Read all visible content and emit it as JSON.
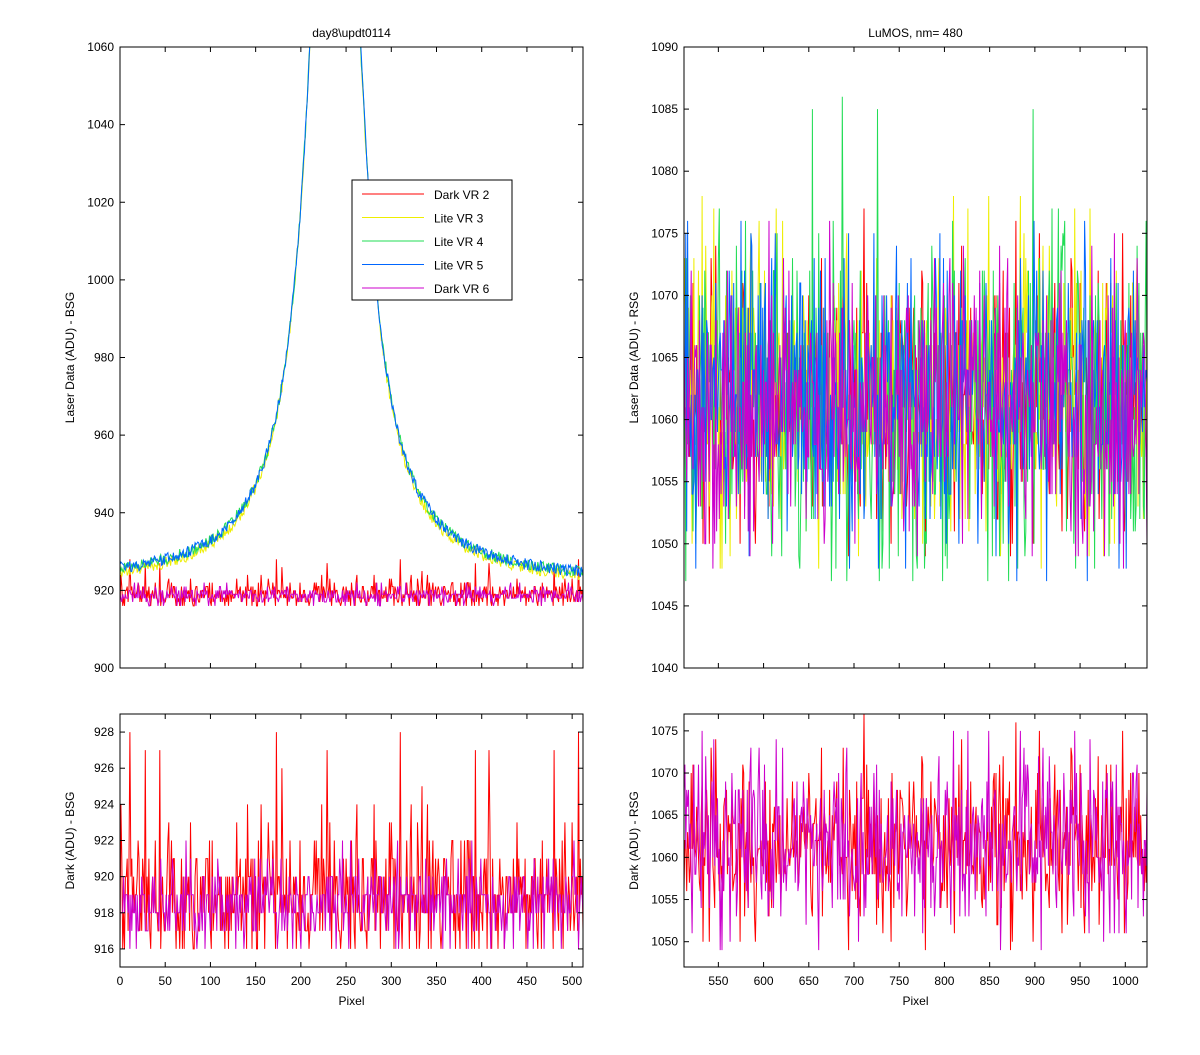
{
  "chart_data": [
    {
      "id": "top-left",
      "type": "line",
      "title": "day8\\updt0114",
      "xlabel": "",
      "ylabel": "Laser Data (ADU) - BSG",
      "xlim": [
        0,
        512
      ],
      "ylim": [
        900,
        1060
      ],
      "xticks": [
        0,
        50,
        100,
        150,
        200,
        250,
        300,
        350,
        400,
        450,
        500
      ],
      "xtick_labels_shown": false,
      "yticks": [
        900,
        920,
        940,
        960,
        980,
        1000,
        1020,
        1040,
        1060
      ],
      "legend": {
        "position": "upper-right-inside",
        "entries": [
          {
            "label": "Dark VR 2",
            "color": "#ff0000"
          },
          {
            "label": "Lite VR 3",
            "color": "#eeee00"
          },
          {
            "label": "Lite VR 4",
            "color": "#22dd55"
          },
          {
            "label": "Lite VR 5",
            "color": "#0066ff"
          },
          {
            "label": "Dark VR 6",
            "color": "#cc00cc"
          }
        ]
      },
      "series": [
        {
          "name": "Dark VR 2",
          "color": "#ff0000",
          "shape": "noise",
          "x_range": [
            0,
            512
          ],
          "mean": 919,
          "min": 916,
          "max": 928,
          "spike": {
            "x": 310,
            "y": 928
          }
        },
        {
          "name": "Lite VR 3",
          "color": "#eeee00",
          "shape": "peak",
          "x_range": [
            0,
            512
          ],
          "baseline": 921,
          "peak_x": 238,
          "peak_y": 1060,
          "clipped_above": 1060
        },
        {
          "name": "Lite VR 4",
          "color": "#22dd55",
          "shape": "peak",
          "x_range": [
            0,
            512
          ],
          "baseline": 922,
          "peak_x": 238,
          "peak_y": 1060,
          "clipped_above": 1060
        },
        {
          "name": "Lite VR 5",
          "color": "#0066ff",
          "shape": "peak",
          "x_range": [
            0,
            512
          ],
          "baseline": 922,
          "peak_x": 238,
          "peak_y": 1060,
          "clipped_above": 1060
        },
        {
          "name": "Dark VR 6",
          "color": "#cc00cc",
          "shape": "noise",
          "x_range": [
            0,
            512
          ],
          "mean": 918.6,
          "min": 916,
          "max": 922
        }
      ]
    },
    {
      "id": "top-right",
      "type": "line",
      "title": "LuMOS, nm= 480",
      "xlabel": "",
      "ylabel": "Laser Data (ADU) - RSG",
      "xlim": [
        512,
        1024
      ],
      "ylim": [
        1040,
        1090
      ],
      "xticks": [
        550,
        600,
        650,
        700,
        750,
        800,
        850,
        900,
        950,
        1000
      ],
      "xtick_labels_shown": false,
      "yticks": [
        1040,
        1045,
        1050,
        1055,
        1060,
        1065,
        1070,
        1075,
        1080,
        1085,
        1090
      ],
      "series": [
        {
          "name": "Dark VR 2",
          "color": "#ff0000",
          "shape": "noise",
          "x_range": [
            512,
            1024
          ],
          "mean": 1061.5,
          "min": 1049,
          "max": 1077
        },
        {
          "name": "Lite VR 3",
          "color": "#eeee00",
          "shape": "noise",
          "x_range": [
            512,
            1024
          ],
          "mean": 1061.5,
          "min": 1047,
          "max": 1079
        },
        {
          "name": "Lite VR 4",
          "color": "#22dd55",
          "shape": "noise",
          "x_range": [
            512,
            1024
          ],
          "mean": 1061.5,
          "min": 1047,
          "max": 1086
        },
        {
          "name": "Lite VR 5",
          "color": "#0066ff",
          "shape": "noise",
          "x_range": [
            512,
            1024
          ],
          "mean": 1061.5,
          "min": 1046,
          "max": 1076
        },
        {
          "name": "Dark VR 6",
          "color": "#cc00cc",
          "shape": "noise",
          "x_range": [
            512,
            1024
          ],
          "mean": 1061.5,
          "min": 1048,
          "max": 1076
        }
      ]
    },
    {
      "id": "bottom-left",
      "type": "line",
      "title": "",
      "xlabel": "Pixel",
      "ylabel": "Dark (ADU) - BSG",
      "xlim": [
        0,
        512
      ],
      "ylim": [
        915,
        929
      ],
      "xticks": [
        0,
        50,
        100,
        150,
        200,
        250,
        300,
        350,
        400,
        450,
        500
      ],
      "xtick_labels_shown": true,
      "yticks": [
        916,
        918,
        920,
        922,
        924,
        926,
        928
      ],
      "series": [
        {
          "name": "Dark VR 2",
          "color": "#ff0000",
          "shape": "noise",
          "x_range": [
            0,
            512
          ],
          "mean": 919,
          "min": 916,
          "max": 928,
          "spike": {
            "x": 310,
            "y": 928
          }
        },
        {
          "name": "Dark VR 6",
          "color": "#cc00cc",
          "shape": "noise",
          "x_range": [
            0,
            512
          ],
          "mean": 918.6,
          "min": 916,
          "max": 922
        }
      ]
    },
    {
      "id": "bottom-right",
      "type": "line",
      "title": "",
      "xlabel": "Pixel",
      "ylabel": "Dark (ADU) - RSG",
      "xlim": [
        512,
        1024
      ],
      "ylim": [
        1047,
        1077
      ],
      "xticks": [
        550,
        600,
        650,
        700,
        750,
        800,
        850,
        900,
        950,
        1000
      ],
      "xtick_labels_shown": true,
      "yticks": [
        1050,
        1055,
        1060,
        1065,
        1070,
        1075
      ],
      "series": [
        {
          "name": "Dark VR 2",
          "color": "#ff0000",
          "shape": "noise",
          "x_range": [
            512,
            1024
          ],
          "mean": 1061.5,
          "min": 1049,
          "max": 1077
        },
        {
          "name": "Dark VR 6",
          "color": "#cc00cc",
          "shape": "noise",
          "x_range": [
            512,
            1024
          ],
          "mean": 1061.5,
          "min": 1048,
          "max": 1076
        }
      ]
    }
  ]
}
